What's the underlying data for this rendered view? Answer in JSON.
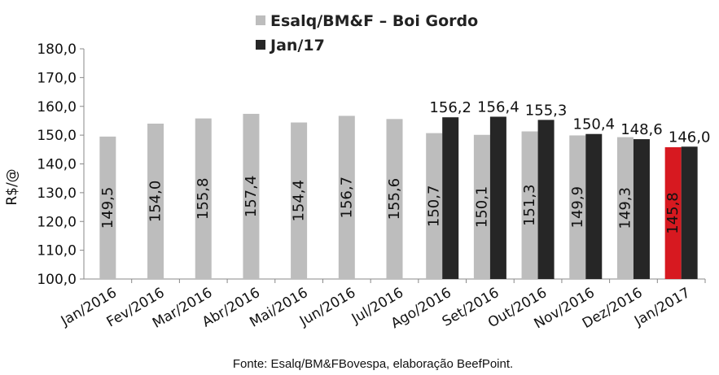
{
  "chart_data": {
    "type": "bar",
    "ylabel": "R$/@",
    "ylim": [
      100,
      180
    ],
    "ytick_step": 10,
    "yticks": [
      "100,0",
      "110,0",
      "120,0",
      "130,0",
      "140,0",
      "150,0",
      "160,0",
      "170,0",
      "180,0"
    ],
    "grid": false,
    "legend_position": "top-center",
    "categories": [
      "Jan/2016",
      "Fev/2016",
      "Mar/2016",
      "Abr/2016",
      "Mai/2016",
      "Jun/2016",
      "Jul/2016",
      "Ago/2016",
      "Set/2016",
      "Out/2016",
      "Nov/2016",
      "Dez/2016",
      "Jan/2017"
    ],
    "series": [
      {
        "name": "Esalq/BM&F – Boi Gordo",
        "color": "#bdbdbd",
        "values": [
          149.5,
          154.0,
          155.8,
          157.4,
          154.4,
          156.7,
          155.6,
          150.7,
          150.1,
          151.3,
          149.9,
          149.3,
          145.8
        ],
        "labels": [
          "149,5",
          "154,0",
          "155,8",
          "157,4",
          "154,4",
          "156,7",
          "155,6",
          "150,7",
          "150,1",
          "151,3",
          "149,9",
          "149,3",
          "145,8"
        ],
        "highlight": {
          "index": 12,
          "color": "#d71920"
        }
      },
      {
        "name": "Jan/17",
        "color": "#262626",
        "values": [
          null,
          null,
          null,
          null,
          null,
          null,
          null,
          156.2,
          156.4,
          155.3,
          150.4,
          148.6,
          146.0
        ],
        "labels": [
          null,
          null,
          null,
          null,
          null,
          null,
          null,
          "156,2",
          "156,4",
          "155,3",
          "150,4",
          "148,6",
          "146,0"
        ]
      }
    ]
  },
  "source_note": "Fonte: Esalq/BM&FBovespa, elaboração BeefPoint."
}
